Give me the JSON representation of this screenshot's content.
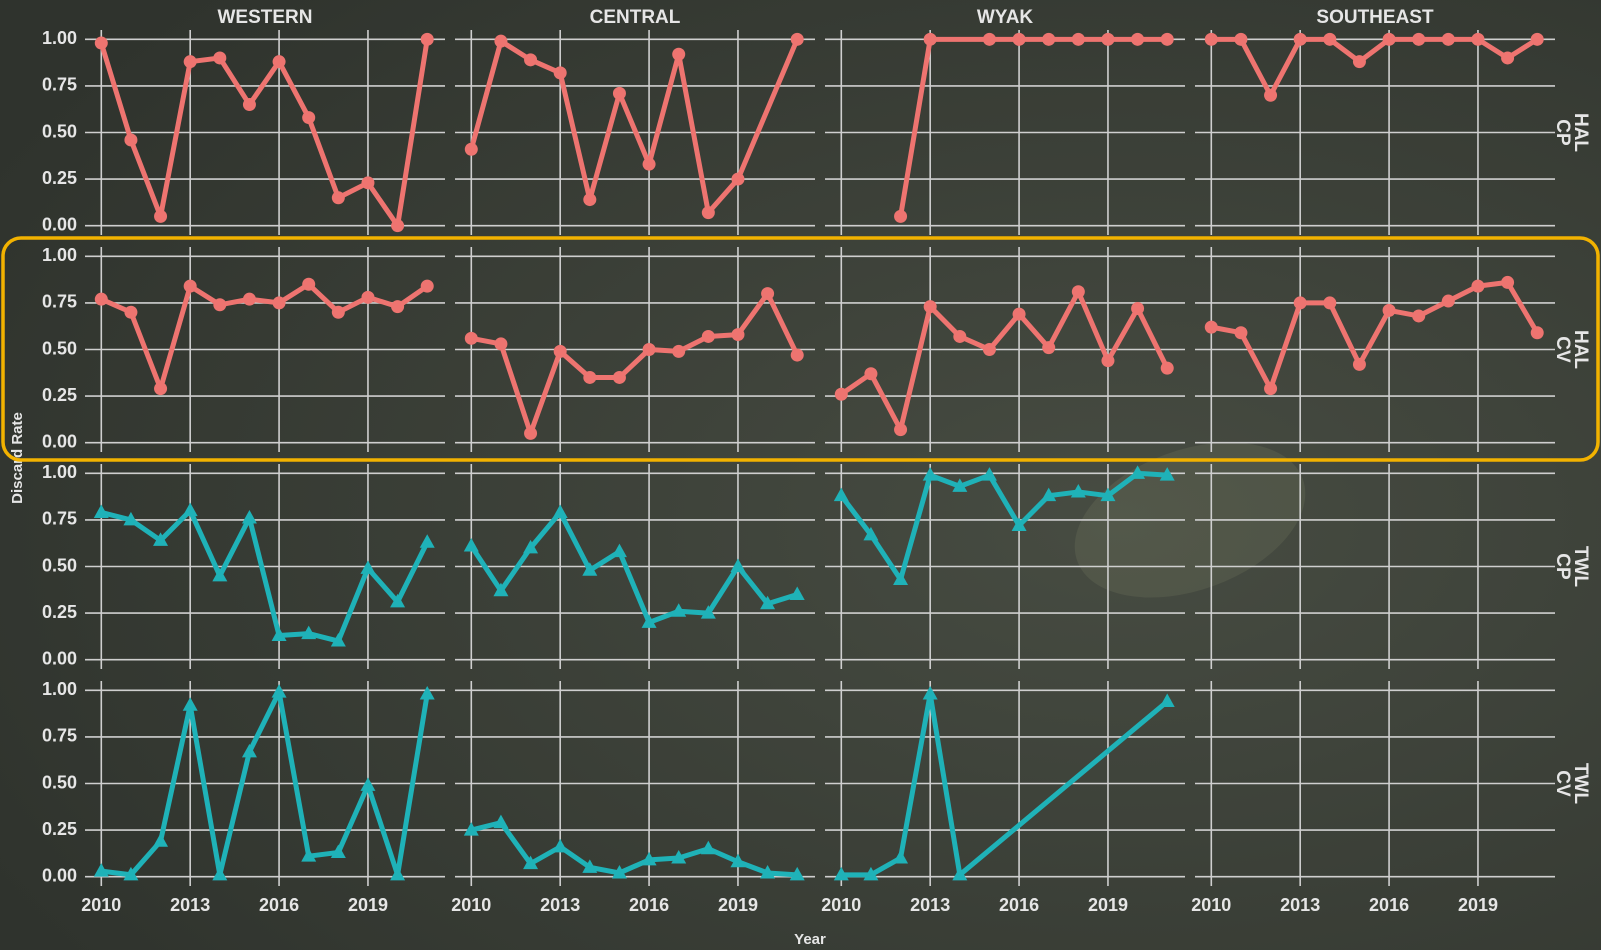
{
  "chart_data": {
    "type": "line",
    "y_label": "Discard Rate",
    "x_label": "Year",
    "columns": [
      "WESTERN",
      "CENTRAL",
      "WYAK",
      "SOUTHEAST"
    ],
    "xlim": [
      2009.45,
      2021.6
    ],
    "xticks": [
      2010,
      2013,
      2016,
      2019
    ],
    "ylim": [
      -0.05,
      1.05
    ],
    "yticks": [
      {
        "value": 0,
        "label": "0.00"
      },
      {
        "value": 0.25,
        "label": "0.25"
      },
      {
        "value": 0.5,
        "label": "0.50"
      },
      {
        "value": 0.75,
        "label": "0.75"
      },
      {
        "value": 1,
        "label": "1.00"
      }
    ],
    "grid": true,
    "rows": [
      {
        "label_lines": [
          "HAL",
          "CP"
        ],
        "color": "#ee7470",
        "marker": "circle",
        "panels": [
          {
            "x": [
              2010,
              2011,
              2012,
              2013,
              2014,
              2015,
              2016,
              2017,
              2018,
              2019,
              2020,
              2021
            ],
            "values": [
              0.98,
              0.46,
              0.05,
              0.88,
              0.9,
              0.65,
              0.88,
              0.58,
              0.15,
              0.23,
              0.0,
              1.0
            ]
          },
          {
            "x": [
              2010,
              2011,
              2012,
              2013,
              2014,
              2015,
              2016,
              2017,
              2018,
              2019,
              2021
            ],
            "values": [
              0.41,
              0.99,
              0.89,
              0.82,
              0.14,
              0.71,
              0.33,
              0.92,
              0.07,
              0.25,
              1.0
            ]
          },
          {
            "x": [
              2012,
              2013,
              2015,
              2016,
              2017,
              2018,
              2019,
              2020,
              2021
            ],
            "values": [
              0.05,
              1.0,
              1.0,
              1.0,
              1.0,
              1.0,
              1.0,
              1.0,
              1.0
            ]
          },
          {
            "x": [
              2010,
              2011,
              2012,
              2013,
              2014,
              2015,
              2016,
              2017,
              2018,
              2019,
              2020,
              2021
            ],
            "values": [
              1.0,
              1.0,
              0.7,
              1.0,
              1.0,
              0.88,
              1.0,
              1.0,
              1.0,
              1.0,
              0.9,
              1.0
            ]
          }
        ]
      },
      {
        "label_lines": [
          "HAL",
          "CV"
        ],
        "color": "#ee7470",
        "marker": "circle",
        "panels": [
          {
            "x": [
              2010,
              2011,
              2012,
              2013,
              2014,
              2015,
              2016,
              2017,
              2018,
              2019,
              2020,
              2021
            ],
            "values": [
              0.77,
              0.7,
              0.29,
              0.84,
              0.74,
              0.77,
              0.75,
              0.85,
              0.7,
              0.78,
              0.73,
              0.84
            ]
          },
          {
            "x": [
              2010,
              2011,
              2012,
              2013,
              2014,
              2015,
              2016,
              2017,
              2018,
              2019,
              2020,
              2021
            ],
            "values": [
              0.56,
              0.53,
              0.05,
              0.49,
              0.35,
              0.35,
              0.5,
              0.49,
              0.57,
              0.58,
              0.8,
              0.47
            ]
          },
          {
            "x": [
              2010,
              2011,
              2012,
              2013,
              2014,
              2015,
              2016,
              2017,
              2018,
              2019,
              2020,
              2021
            ],
            "values": [
              0.26,
              0.37,
              0.07,
              0.73,
              0.57,
              0.5,
              0.69,
              0.51,
              0.81,
              0.44,
              0.72,
              0.4
            ]
          },
          {
            "x": [
              2010,
              2011,
              2012,
              2013,
              2014,
              2015,
              2016,
              2017,
              2018,
              2019,
              2020,
              2021
            ],
            "values": [
              0.62,
              0.59,
              0.29,
              0.75,
              0.75,
              0.42,
              0.71,
              0.68,
              0.76,
              0.84,
              0.86,
              0.59
            ]
          }
        ]
      },
      {
        "label_lines": [
          "TWL",
          "CP"
        ],
        "color": "#1fb2b8",
        "marker": "triangle",
        "panels": [
          {
            "x": [
              2010,
              2011,
              2012,
              2013,
              2014,
              2015,
              2016,
              2017,
              2018,
              2019,
              2020,
              2021
            ],
            "values": [
              0.79,
              0.75,
              0.64,
              0.8,
              0.45,
              0.76,
              0.13,
              0.14,
              0.1,
              0.49,
              0.31,
              0.63
            ]
          },
          {
            "x": [
              2010,
              2011,
              2012,
              2013,
              2014,
              2015,
              2016,
              2017,
              2018,
              2019,
              2020,
              2021
            ],
            "values": [
              0.61,
              0.37,
              0.6,
              0.79,
              0.48,
              0.58,
              0.2,
              0.26,
              0.25,
              0.5,
              0.3,
              0.35
            ]
          },
          {
            "x": [
              2010,
              2011,
              2012,
              2013,
              2014,
              2015,
              2016,
              2017,
              2018,
              2019,
              2020,
              2021
            ],
            "values": [
              0.88,
              0.67,
              0.43,
              0.99,
              0.93,
              0.99,
              0.72,
              0.88,
              0.9,
              0.88,
              1.0,
              0.99
            ]
          },
          {
            "x": [],
            "values": []
          }
        ]
      },
      {
        "label_lines": [
          "TWL",
          "CV"
        ],
        "color": "#1fb2b8",
        "marker": "triangle",
        "panels": [
          {
            "x": [
              2010,
              2011,
              2012,
              2013,
              2014,
              2015,
              2016,
              2017,
              2018,
              2019,
              2020,
              2021
            ],
            "values": [
              0.03,
              0.01,
              0.19,
              0.92,
              0.01,
              0.67,
              0.99,
              0.11,
              0.13,
              0.49,
              0.01,
              0.98
            ]
          },
          {
            "x": [
              2010,
              2011,
              2012,
              2013,
              2014,
              2015,
              2016,
              2017,
              2018,
              2019,
              2020,
              2021
            ],
            "values": [
              0.25,
              0.29,
              0.07,
              0.16,
              0.05,
              0.02,
              0.09,
              0.1,
              0.15,
              0.08,
              0.02,
              0.01
            ]
          },
          {
            "x": [
              2010,
              2011,
              2012,
              2013,
              2014,
              2021
            ],
            "values": [
              0.01,
              0.01,
              0.1,
              0.98,
              0.01,
              0.94
            ]
          },
          {
            "x": [],
            "values": []
          }
        ]
      }
    ]
  }
}
